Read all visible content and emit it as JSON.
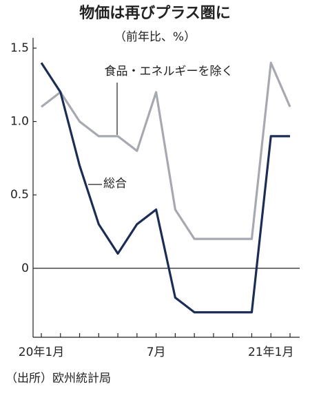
{
  "chart_data": {
    "type": "line",
    "title": "物価は再びプラス圏に",
    "subtitle": "（前年比、%）",
    "source": "（出所）欧州統計局",
    "categories": [
      "20年1月",
      null,
      null,
      null,
      null,
      null,
      "7月",
      null,
      null,
      null,
      null,
      null,
      "21年1月",
      null
    ],
    "series": [
      {
        "name": "食品・エネルギーを除く",
        "color": "#a7a9b1",
        "values": [
          1.1,
          1.2,
          1.0,
          0.9,
          0.9,
          0.8,
          1.2,
          0.4,
          0.2,
          0.2,
          0.2,
          0.2,
          1.4,
          1.1
        ]
      },
      {
        "name": "総合",
        "color": "#1b2d55",
        "values": [
          1.4,
          1.2,
          0.7,
          0.3,
          0.1,
          0.3,
          0.4,
          -0.2,
          -0.3,
          -0.3,
          -0.3,
          -0.3,
          0.9,
          0.9
        ]
      }
    ],
    "ylim": [
      -0.47,
      1.57
    ],
    "yticks": [
      0,
      0.5,
      {
        "value": 1,
        "label": "1.0"
      },
      {
        "value": 1.5,
        "label": "1.5"
      }
    ]
  }
}
